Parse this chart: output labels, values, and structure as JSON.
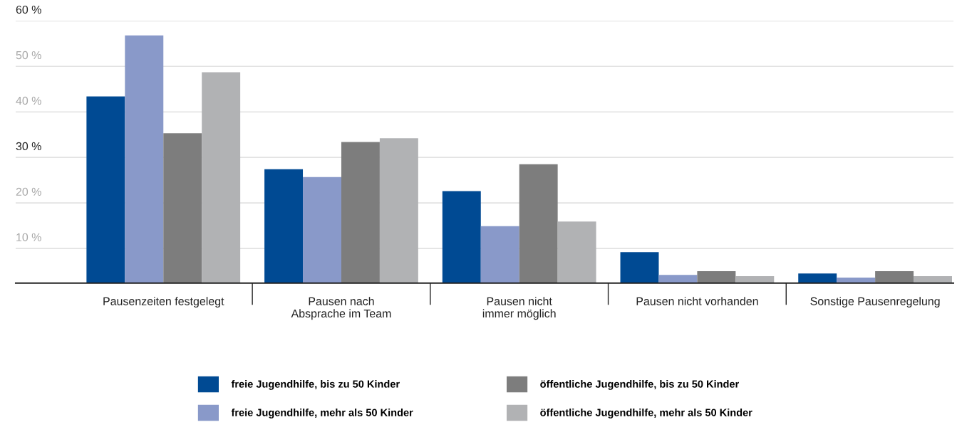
{
  "chart_data": {
    "type": "bar",
    "categories": [
      "Pausenzeiten festgelegt",
      "Pausen nach\nAbsprache im Team",
      "Pausen nicht\nimmer möglich",
      "Pausen nicht vorhanden",
      "Sonstige Pausenregelung"
    ],
    "series": [
      {
        "name": "freie Jugendhilfe, bis zu 50 Kinder",
        "color": "#004a93",
        "values": [
          43.4,
          27.4,
          22.6,
          9.2,
          4.5
        ]
      },
      {
        "name": "freie Jugendhilfe, mehr als 50 Kinder",
        "color": "#8999c9",
        "values": [
          56.8,
          25.7,
          14.9,
          4.2,
          3.6
        ]
      },
      {
        "name": "öffentliche Jugendhilfe, bis zu 50 Kinder",
        "color": "#7d7d7d",
        "values": [
          35.3,
          33.4,
          28.5,
          5.0,
          5.0
        ]
      },
      {
        "name": "öffentliche Jugendhilfe, mehr als 50 Kinder",
        "color": "#b1b2b4",
        "values": [
          48.7,
          34.2,
          15.9,
          3.9,
          3.9
        ]
      }
    ],
    "ylim": [
      2.4,
      60
    ],
    "yticks": [
      {
        "value": 10,
        "label": "10 %"
      },
      {
        "value": 20,
        "label": "20 %"
      },
      {
        "value": 30,
        "label": "30 %"
      },
      {
        "value": 40,
        "label": "40 %"
      },
      {
        "value": 50,
        "label": "50 %"
      },
      {
        "value": 60,
        "label": "60 %"
      }
    ],
    "grid": "y",
    "legend": "bottom"
  }
}
